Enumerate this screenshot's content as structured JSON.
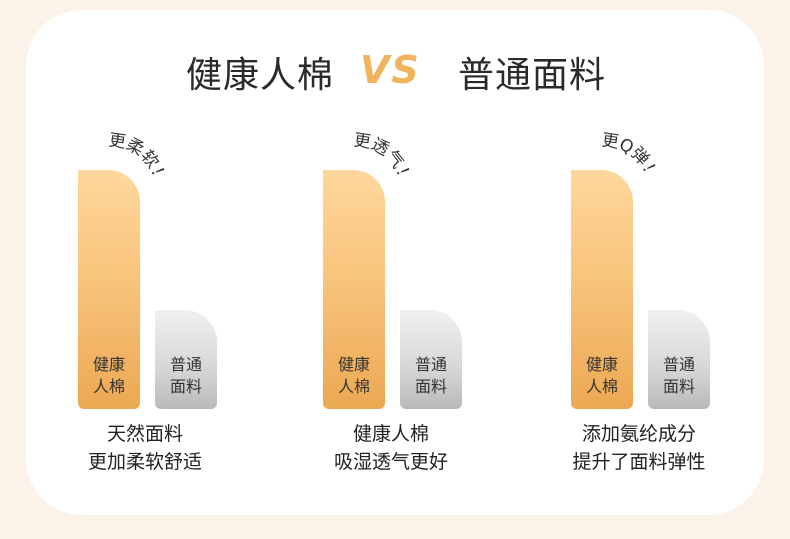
{
  "title": {
    "left": "健康人棉",
    "vs": "VS",
    "right": "普通面料"
  },
  "groups": [
    {
      "callout": "更柔软！",
      "main_bar_label": [
        "健康",
        "人棉"
      ],
      "other_bar_label": [
        "普通",
        "面料"
      ],
      "caption": [
        "天然面料",
        "更加柔软舒适"
      ]
    },
    {
      "callout": "更透气！",
      "main_bar_label": [
        "健康",
        "人棉"
      ],
      "other_bar_label": [
        "普通",
        "面料"
      ],
      "caption": [
        "健康人棉",
        "吸湿透气更好"
      ]
    },
    {
      "callout": "更Q弹！",
      "main_bar_label": [
        "健康",
        "人棉"
      ],
      "other_bar_label": [
        "普通",
        "面料"
      ],
      "caption": [
        "添加氨纶成分",
        "提升了面料弹性"
      ]
    }
  ],
  "colors": {
    "accent": "#f0b45d",
    "main_bar_top": "#fed79d",
    "main_bar_bottom": "#eca853",
    "other_bar_top": "#f1f1f1",
    "other_bar_bottom": "#b9b9b9",
    "background": "#fbf3ea",
    "card": "#ffffff"
  }
}
